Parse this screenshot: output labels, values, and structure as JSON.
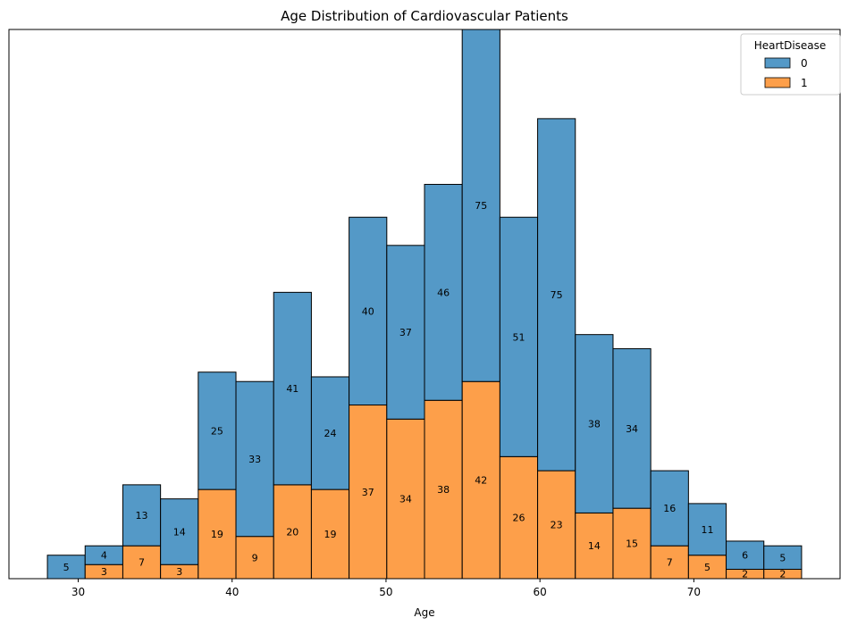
{
  "chart_data": {
    "type": "bar",
    "stacked": true,
    "title": "Age Distribution of Cardiovascular Patients",
    "xlabel": "Age",
    "ylabel": "",
    "xlim": [
      25.5,
      79.5
    ],
    "ylim": [
      0,
      117
    ],
    "xticks": [
      30,
      40,
      50,
      60,
      70
    ],
    "bin_edges": [
      28.0,
      30.45,
      32.9,
      35.35,
      37.8,
      40.25,
      42.7,
      45.15,
      47.6,
      50.05,
      52.5,
      54.95,
      57.4,
      59.85,
      62.3,
      64.75,
      67.2,
      69.65,
      72.1,
      74.55,
      77.0
    ],
    "series": [
      {
        "name": "0",
        "color": "#5499c7",
        "values": [
          5,
          4,
          13,
          14,
          25,
          33,
          41,
          24,
          40,
          37,
          46,
          75,
          51,
          75,
          38,
          34,
          16,
          11,
          6,
          5
        ]
      },
      {
        "name": "1",
        "color": "#fd9f4a",
        "values": [
          0,
          3,
          7,
          3,
          19,
          9,
          20,
          19,
          37,
          34,
          38,
          42,
          26,
          23,
          14,
          15,
          7,
          5,
          2,
          2
        ]
      }
    ],
    "legend": {
      "title": "HeartDisease",
      "position": "top-right"
    },
    "grid": false
  }
}
